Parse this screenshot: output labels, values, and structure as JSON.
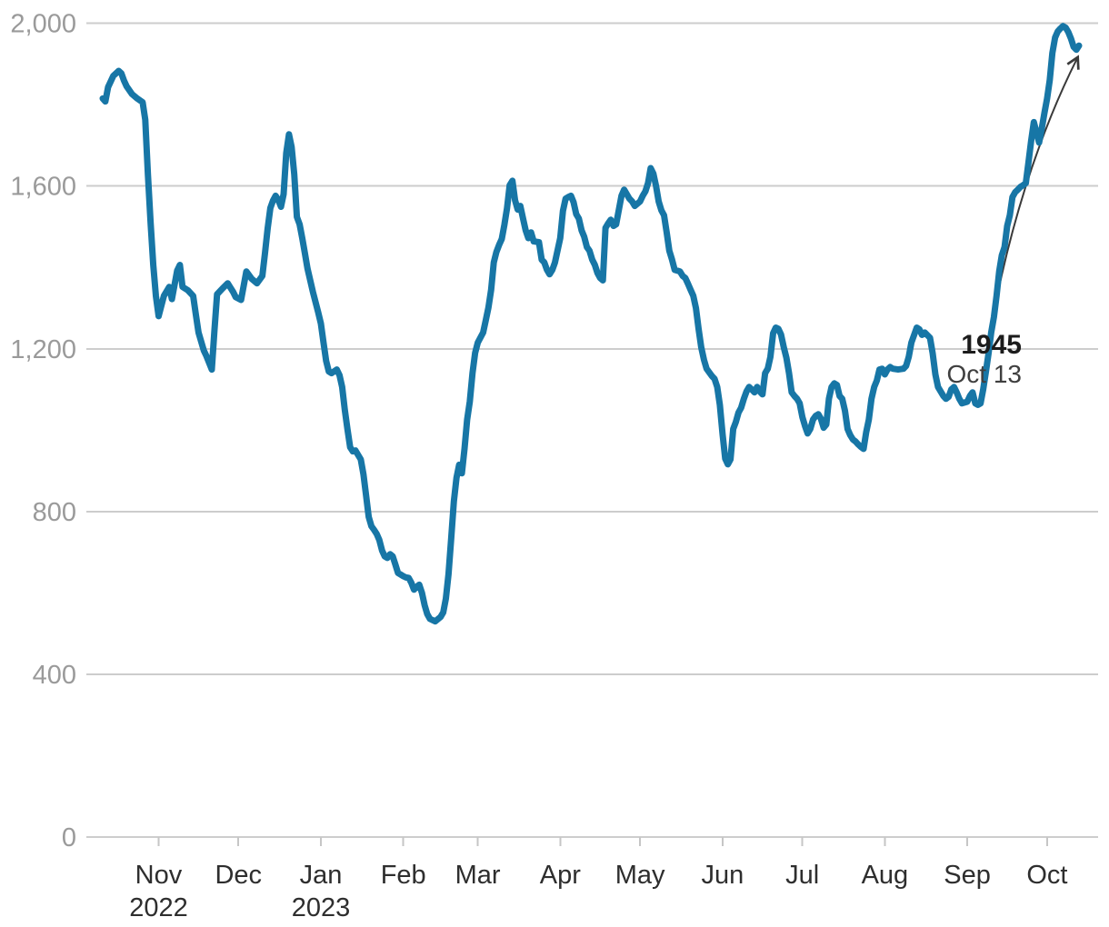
{
  "chart_data": {
    "type": "line",
    "y_axis": {
      "min": 0,
      "max": 2000,
      "ticks": [
        {
          "value": 0,
          "label": "0"
        },
        {
          "value": 400,
          "label": "400"
        },
        {
          "value": 800,
          "label": "800"
        },
        {
          "value": 1200,
          "label": "1,200"
        },
        {
          "value": 1600,
          "label": "1,600"
        },
        {
          "value": 2000,
          "label": "2,000"
        }
      ],
      "grid": true
    },
    "x_axis": {
      "ticks": [
        {
          "date": "2022-11-01",
          "label": "Nov",
          "year": "2022"
        },
        {
          "date": "2022-12-01",
          "label": "Dec"
        },
        {
          "date": "2023-01-01",
          "label": "Jan",
          "year": "2023"
        },
        {
          "date": "2023-02-01",
          "label": "Feb"
        },
        {
          "date": "2023-03-01",
          "label": "Mar"
        },
        {
          "date": "2023-04-01",
          "label": "Apr"
        },
        {
          "date": "2023-05-01",
          "label": "May"
        },
        {
          "date": "2023-06-01",
          "label": "Jun"
        },
        {
          "date": "2023-07-01",
          "label": "Jul"
        },
        {
          "date": "2023-08-01",
          "label": "Aug"
        },
        {
          "date": "2023-09-01",
          "label": "Sep"
        },
        {
          "date": "2023-10-01",
          "label": "Oct"
        }
      ],
      "range": [
        "2022-10-11",
        "2023-10-13"
      ]
    },
    "annotation": {
      "value_label": "1945",
      "date_label": "Oct 13",
      "target": {
        "date": "2023-10-13",
        "value": 1945
      }
    },
    "colors": {
      "line": "#1776a6",
      "grid": "#cdcdcd",
      "tick": "#c6c6c6",
      "y_label": "#9a9a9a",
      "x_label": "#2e2e2e",
      "annotation_value": "#1c1c1c",
      "annotation_date": "#3f3f3f",
      "arrow": "#3a3a3a",
      "background": "#ffffff"
    },
    "points": [
      [
        "2022-10-11",
        1815
      ],
      [
        "2022-10-12",
        1808
      ],
      [
        "2022-10-13",
        1843
      ],
      [
        "2022-10-15",
        1871
      ],
      [
        "2022-10-17",
        1883
      ],
      [
        "2022-10-18",
        1877
      ],
      [
        "2022-10-19",
        1859
      ],
      [
        "2022-10-20",
        1845
      ],
      [
        "2022-10-22",
        1826
      ],
      [
        "2022-10-24",
        1815
      ],
      [
        "2022-10-26",
        1806
      ],
      [
        "2022-10-27",
        1763
      ],
      [
        "2022-10-28",
        1629
      ],
      [
        "2022-10-29",
        1509
      ],
      [
        "2022-10-30",
        1406
      ],
      [
        "2022-10-31",
        1330
      ],
      [
        "2022-11-01",
        1280
      ],
      [
        "2022-11-03",
        1330
      ],
      [
        "2022-11-05",
        1352
      ],
      [
        "2022-11-06",
        1322
      ],
      [
        "2022-11-08",
        1392
      ],
      [
        "2022-11-09",
        1406
      ],
      [
        "2022-11-10",
        1352
      ],
      [
        "2022-11-12",
        1344
      ],
      [
        "2022-11-14",
        1330
      ],
      [
        "2022-11-15",
        1285
      ],
      [
        "2022-11-16",
        1240
      ],
      [
        "2022-11-18",
        1196
      ],
      [
        "2022-11-19",
        1182
      ],
      [
        "2022-11-21",
        1149
      ],
      [
        "2022-11-22",
        1245
      ],
      [
        "2022-11-23",
        1334
      ],
      [
        "2022-11-25",
        1348
      ],
      [
        "2022-11-27",
        1361
      ],
      [
        "2022-11-29",
        1340
      ],
      [
        "2022-11-30",
        1327
      ],
      [
        "2022-12-02",
        1320
      ],
      [
        "2022-12-04",
        1390
      ],
      [
        "2022-12-06",
        1372
      ],
      [
        "2022-12-08",
        1361
      ],
      [
        "2022-12-10",
        1379
      ],
      [
        "2022-12-11",
        1435
      ],
      [
        "2022-12-12",
        1495
      ],
      [
        "2022-12-13",
        1546
      ],
      [
        "2022-12-14",
        1564
      ],
      [
        "2022-12-15",
        1576
      ],
      [
        "2022-12-16",
        1566
      ],
      [
        "2022-12-17",
        1549
      ],
      [
        "2022-12-18",
        1580
      ],
      [
        "2022-12-19",
        1681
      ],
      [
        "2022-12-20",
        1727
      ],
      [
        "2022-12-21",
        1696
      ],
      [
        "2022-12-22",
        1629
      ],
      [
        "2022-12-23",
        1524
      ],
      [
        "2022-12-24",
        1506
      ],
      [
        "2022-12-25",
        1472
      ],
      [
        "2022-12-26",
        1435
      ],
      [
        "2022-12-27",
        1397
      ],
      [
        "2022-12-29",
        1340
      ],
      [
        "2022-12-31",
        1290
      ],
      [
        "2023-01-01",
        1262
      ],
      [
        "2023-01-02",
        1215
      ],
      [
        "2023-01-03",
        1170
      ],
      [
        "2023-01-04",
        1144
      ],
      [
        "2023-01-05",
        1140
      ],
      [
        "2023-01-07",
        1149
      ],
      [
        "2023-01-08",
        1135
      ],
      [
        "2023-01-09",
        1106
      ],
      [
        "2023-01-10",
        1050
      ],
      [
        "2023-01-11",
        1003
      ],
      [
        "2023-01-12",
        958
      ],
      [
        "2023-01-13",
        948
      ],
      [
        "2023-01-14",
        950
      ],
      [
        "2023-01-16",
        928
      ],
      [
        "2023-01-17",
        892
      ],
      [
        "2023-01-18",
        840
      ],
      [
        "2023-01-19",
        787
      ],
      [
        "2023-01-20",
        764
      ],
      [
        "2023-01-21",
        755
      ],
      [
        "2023-01-22",
        745
      ],
      [
        "2023-01-23",
        730
      ],
      [
        "2023-01-24",
        704
      ],
      [
        "2023-01-25",
        690
      ],
      [
        "2023-01-26",
        686
      ],
      [
        "2023-01-27",
        695
      ],
      [
        "2023-01-28",
        690
      ],
      [
        "2023-01-29",
        670
      ],
      [
        "2023-01-30",
        649
      ],
      [
        "2023-02-01",
        641
      ],
      [
        "2023-02-02",
        638
      ],
      [
        "2023-02-03",
        637
      ],
      [
        "2023-02-04",
        625
      ],
      [
        "2023-02-05",
        608
      ],
      [
        "2023-02-06",
        615
      ],
      [
        "2023-02-07",
        620
      ],
      [
        "2023-02-08",
        600
      ],
      [
        "2023-02-09",
        570
      ],
      [
        "2023-02-10",
        548
      ],
      [
        "2023-02-11",
        536
      ],
      [
        "2023-02-13",
        530
      ],
      [
        "2023-02-15",
        541
      ],
      [
        "2023-02-16",
        552
      ],
      [
        "2023-02-17",
        586
      ],
      [
        "2023-02-18",
        646
      ],
      [
        "2023-02-19",
        735
      ],
      [
        "2023-02-20",
        825
      ],
      [
        "2023-02-21",
        883
      ],
      [
        "2023-02-22",
        915
      ],
      [
        "2023-02-23",
        894
      ],
      [
        "2023-02-24",
        954
      ],
      [
        "2023-02-25",
        1026
      ],
      [
        "2023-02-26",
        1070
      ],
      [
        "2023-02-27",
        1140
      ],
      [
        "2023-02-28",
        1190
      ],
      [
        "2023-03-01",
        1215
      ],
      [
        "2023-03-03",
        1240
      ],
      [
        "2023-03-04",
        1270
      ],
      [
        "2023-03-05",
        1301
      ],
      [
        "2023-03-06",
        1345
      ],
      [
        "2023-03-07",
        1412
      ],
      [
        "2023-03-08",
        1438
      ],
      [
        "2023-03-09",
        1455
      ],
      [
        "2023-03-10",
        1470
      ],
      [
        "2023-03-11",
        1505
      ],
      [
        "2023-03-12",
        1546
      ],
      [
        "2023-03-13",
        1602
      ],
      [
        "2023-03-14",
        1613
      ],
      [
        "2023-03-15",
        1565
      ],
      [
        "2023-03-16",
        1542
      ],
      [
        "2023-03-17",
        1551
      ],
      [
        "2023-03-18",
        1520
      ],
      [
        "2023-03-19",
        1491
      ],
      [
        "2023-03-20",
        1472
      ],
      [
        "2023-03-21",
        1486
      ],
      [
        "2023-03-22",
        1464
      ],
      [
        "2023-03-24",
        1462
      ],
      [
        "2023-03-25",
        1419
      ],
      [
        "2023-03-26",
        1412
      ],
      [
        "2023-03-27",
        1394
      ],
      [
        "2023-03-28",
        1383
      ],
      [
        "2023-03-29",
        1394
      ],
      [
        "2023-03-30",
        1412
      ],
      [
        "2023-04-01",
        1472
      ],
      [
        "2023-04-02",
        1539
      ],
      [
        "2023-04-03",
        1569
      ],
      [
        "2023-04-04",
        1573
      ],
      [
        "2023-04-05",
        1576
      ],
      [
        "2023-04-06",
        1560
      ],
      [
        "2023-04-07",
        1531
      ],
      [
        "2023-04-08",
        1520
      ],
      [
        "2023-04-09",
        1491
      ],
      [
        "2023-04-10",
        1475
      ],
      [
        "2023-04-11",
        1450
      ],
      [
        "2023-04-12",
        1441
      ],
      [
        "2023-04-13",
        1419
      ],
      [
        "2023-04-14",
        1406
      ],
      [
        "2023-04-15",
        1386
      ],
      [
        "2023-04-16",
        1374
      ],
      [
        "2023-04-17",
        1368
      ],
      [
        "2023-04-18",
        1497
      ],
      [
        "2023-04-19",
        1508
      ],
      [
        "2023-04-20",
        1517
      ],
      [
        "2023-04-21",
        1502
      ],
      [
        "2023-04-22",
        1506
      ],
      [
        "2023-04-24",
        1576
      ],
      [
        "2023-04-25",
        1591
      ],
      [
        "2023-04-26",
        1580
      ],
      [
        "2023-04-27",
        1569
      ],
      [
        "2023-04-28",
        1562
      ],
      [
        "2023-04-29",
        1551
      ],
      [
        "2023-05-01",
        1562
      ],
      [
        "2023-05-02",
        1576
      ],
      [
        "2023-05-03",
        1587
      ],
      [
        "2023-05-04",
        1607
      ],
      [
        "2023-05-05",
        1644
      ],
      [
        "2023-05-06",
        1630
      ],
      [
        "2023-05-07",
        1600
      ],
      [
        "2023-05-08",
        1562
      ],
      [
        "2023-05-09",
        1540
      ],
      [
        "2023-05-10",
        1528
      ],
      [
        "2023-05-11",
        1486
      ],
      [
        "2023-05-12",
        1441
      ],
      [
        "2023-05-13",
        1419
      ],
      [
        "2023-05-14",
        1394
      ],
      [
        "2023-05-16",
        1390
      ],
      [
        "2023-05-17",
        1379
      ],
      [
        "2023-05-18",
        1374
      ],
      [
        "2023-05-19",
        1360
      ],
      [
        "2023-05-20",
        1345
      ],
      [
        "2023-05-21",
        1330
      ],
      [
        "2023-05-22",
        1300
      ],
      [
        "2023-05-23",
        1249
      ],
      [
        "2023-05-24",
        1204
      ],
      [
        "2023-05-25",
        1173
      ],
      [
        "2023-05-26",
        1151
      ],
      [
        "2023-05-28",
        1133
      ],
      [
        "2023-05-29",
        1126
      ],
      [
        "2023-05-30",
        1106
      ],
      [
        "2023-05-31",
        1062
      ],
      [
        "2023-06-01",
        990
      ],
      [
        "2023-06-02",
        930
      ],
      [
        "2023-06-03",
        916
      ],
      [
        "2023-06-04",
        928
      ],
      [
        "2023-06-05",
        1003
      ],
      [
        "2023-06-06",
        1020
      ],
      [
        "2023-06-07",
        1043
      ],
      [
        "2023-06-08",
        1055
      ],
      [
        "2023-06-09",
        1077
      ],
      [
        "2023-06-10",
        1095
      ],
      [
        "2023-06-11",
        1106
      ],
      [
        "2023-06-12",
        1100
      ],
      [
        "2023-06-13",
        1093
      ],
      [
        "2023-06-14",
        1106
      ],
      [
        "2023-06-15",
        1095
      ],
      [
        "2023-06-16",
        1088
      ],
      [
        "2023-06-17",
        1140
      ],
      [
        "2023-06-18",
        1151
      ],
      [
        "2023-06-19",
        1180
      ],
      [
        "2023-06-20",
        1238
      ],
      [
        "2023-06-21",
        1252
      ],
      [
        "2023-06-22",
        1249
      ],
      [
        "2023-06-23",
        1235
      ],
      [
        "2023-06-24",
        1204
      ],
      [
        "2023-06-25",
        1178
      ],
      [
        "2023-06-26",
        1140
      ],
      [
        "2023-06-27",
        1093
      ],
      [
        "2023-06-28",
        1084
      ],
      [
        "2023-06-29",
        1077
      ],
      [
        "2023-06-30",
        1066
      ],
      [
        "2023-07-01",
        1032
      ],
      [
        "2023-07-02",
        1010
      ],
      [
        "2023-07-03",
        992
      ],
      [
        "2023-07-04",
        1003
      ],
      [
        "2023-07-05",
        1026
      ],
      [
        "2023-07-06",
        1035
      ],
      [
        "2023-07-07",
        1039
      ],
      [
        "2023-07-08",
        1028
      ],
      [
        "2023-07-09",
        1006
      ],
      [
        "2023-07-10",
        1014
      ],
      [
        "2023-07-11",
        1077
      ],
      [
        "2023-07-12",
        1106
      ],
      [
        "2023-07-13",
        1115
      ],
      [
        "2023-07-14",
        1111
      ],
      [
        "2023-07-15",
        1084
      ],
      [
        "2023-07-16",
        1077
      ],
      [
        "2023-07-17",
        1048
      ],
      [
        "2023-07-18",
        1003
      ],
      [
        "2023-07-19",
        988
      ],
      [
        "2023-07-20",
        977
      ],
      [
        "2023-07-21",
        972
      ],
      [
        "2023-07-22",
        965
      ],
      [
        "2023-07-23",
        959
      ],
      [
        "2023-07-24",
        954
      ],
      [
        "2023-07-25",
        995
      ],
      [
        "2023-07-26",
        1026
      ],
      [
        "2023-07-27",
        1077
      ],
      [
        "2023-07-28",
        1106
      ],
      [
        "2023-07-29",
        1122
      ],
      [
        "2023-07-30",
        1149
      ],
      [
        "2023-07-31",
        1151
      ],
      [
        "2023-08-01",
        1137
      ],
      [
        "2023-08-02",
        1149
      ],
      [
        "2023-08-03",
        1155
      ],
      [
        "2023-08-04",
        1151
      ],
      [
        "2023-08-06",
        1149
      ],
      [
        "2023-08-08",
        1151
      ],
      [
        "2023-08-09",
        1158
      ],
      [
        "2023-08-10",
        1180
      ],
      [
        "2023-08-11",
        1215
      ],
      [
        "2023-08-13",
        1252
      ],
      [
        "2023-08-14",
        1248
      ],
      [
        "2023-08-15",
        1234
      ],
      [
        "2023-08-16",
        1240
      ],
      [
        "2023-08-18",
        1227
      ],
      [
        "2023-08-19",
        1189
      ],
      [
        "2023-08-20",
        1137
      ],
      [
        "2023-08-21",
        1106
      ],
      [
        "2023-08-23",
        1084
      ],
      [
        "2023-08-24",
        1077
      ],
      [
        "2023-08-25",
        1082
      ],
      [
        "2023-08-26",
        1100
      ],
      [
        "2023-08-27",
        1106
      ],
      [
        "2023-08-28",
        1093
      ],
      [
        "2023-08-29",
        1077
      ],
      [
        "2023-08-30",
        1066
      ],
      [
        "2023-09-01",
        1070
      ],
      [
        "2023-09-02",
        1084
      ],
      [
        "2023-09-03",
        1093
      ],
      [
        "2023-09-04",
        1066
      ],
      [
        "2023-09-05",
        1062
      ],
      [
        "2023-09-06",
        1066
      ],
      [
        "2023-09-07",
        1100
      ],
      [
        "2023-09-08",
        1144
      ],
      [
        "2023-09-09",
        1189
      ],
      [
        "2023-09-10",
        1240
      ],
      [
        "2023-09-11",
        1278
      ],
      [
        "2023-09-12",
        1330
      ],
      [
        "2023-09-13",
        1390
      ],
      [
        "2023-09-14",
        1430
      ],
      [
        "2023-09-15",
        1450
      ],
      [
        "2023-09-16",
        1502
      ],
      [
        "2023-09-17",
        1528
      ],
      [
        "2023-09-18",
        1573
      ],
      [
        "2023-09-19",
        1585
      ],
      [
        "2023-09-20",
        1591
      ],
      [
        "2023-09-21",
        1598
      ],
      [
        "2023-09-22",
        1602
      ],
      [
        "2023-09-23",
        1607
      ],
      [
        "2023-09-24",
        1658
      ],
      [
        "2023-09-25",
        1710
      ],
      [
        "2023-09-26",
        1757
      ],
      [
        "2023-09-27",
        1732
      ],
      [
        "2023-09-28",
        1707
      ],
      [
        "2023-09-29",
        1741
      ],
      [
        "2023-09-30",
        1780
      ],
      [
        "2023-10-01",
        1815
      ],
      [
        "2023-10-02",
        1860
      ],
      [
        "2023-10-03",
        1927
      ],
      [
        "2023-10-04",
        1965
      ],
      [
        "2023-10-05",
        1980
      ],
      [
        "2023-10-06",
        1987
      ],
      [
        "2023-10-07",
        1993
      ],
      [
        "2023-10-08",
        1989
      ],
      [
        "2023-10-09",
        1978
      ],
      [
        "2023-10-10",
        1962
      ],
      [
        "2023-10-11",
        1942
      ],
      [
        "2023-10-12",
        1935
      ],
      [
        "2023-10-13",
        1945
      ]
    ]
  }
}
